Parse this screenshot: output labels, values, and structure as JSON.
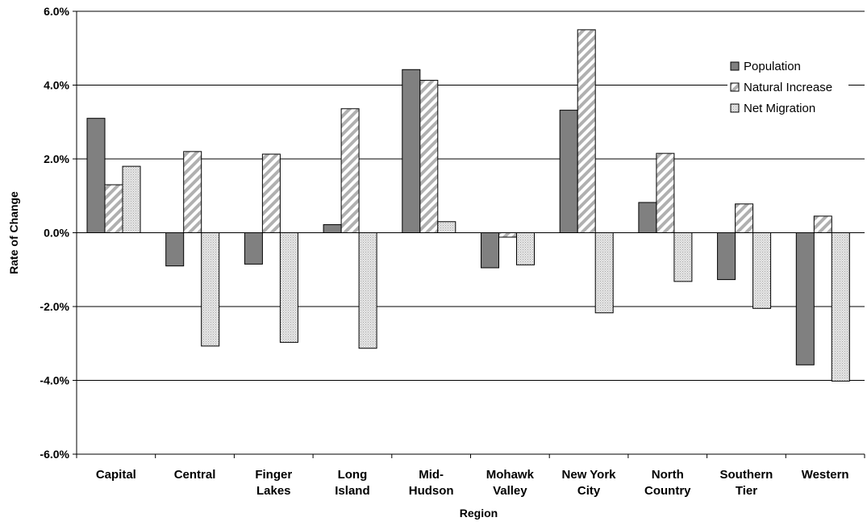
{
  "chart_data": {
    "type": "bar",
    "xlabel": "Region",
    "ylabel": "Rate of Change",
    "ylim": [
      -6.0,
      6.0
    ],
    "yticks": [
      -6.0,
      -4.0,
      -2.0,
      0.0,
      2.0,
      4.0,
      6.0
    ],
    "ytick_labels": [
      "-6.0%",
      "-4.0%",
      "-2.0%",
      "0.0%",
      "2.0%",
      "4.0%",
      "6.0%"
    ],
    "grid": "horizontal",
    "legend_position": "top-right",
    "categories": [
      [
        "Capital"
      ],
      [
        "Central"
      ],
      [
        "Finger",
        "Lakes"
      ],
      [
        "Long",
        "Island"
      ],
      [
        "Mid-",
        "Hudson"
      ],
      [
        "Mohawk",
        "Valley"
      ],
      [
        "New York",
        "City"
      ],
      [
        "North",
        "Country"
      ],
      [
        "Southern",
        "Tier"
      ],
      [
        "Western"
      ]
    ],
    "series": [
      {
        "name": "Population",
        "pattern": "solid-dark-gray",
        "color": "#808080",
        "values": [
          3.1,
          -0.9,
          -0.85,
          0.22,
          4.42,
          -0.95,
          3.32,
          0.82,
          -1.27,
          -3.58
        ]
      },
      {
        "name": "Natural Increase",
        "pattern": "diagonal-stripe",
        "color": "#ffffff",
        "values": [
          1.3,
          2.2,
          2.13,
          3.36,
          4.13,
          -0.12,
          5.5,
          2.15,
          0.78,
          0.45
        ]
      },
      {
        "name": "Net Migration",
        "pattern": "dotted-light-gray",
        "color": "#d8d8d8",
        "values": [
          1.8,
          -3.07,
          -2.97,
          -3.13,
          0.3,
          -0.87,
          -2.17,
          -1.32,
          -2.05,
          -4.02
        ]
      }
    ]
  }
}
